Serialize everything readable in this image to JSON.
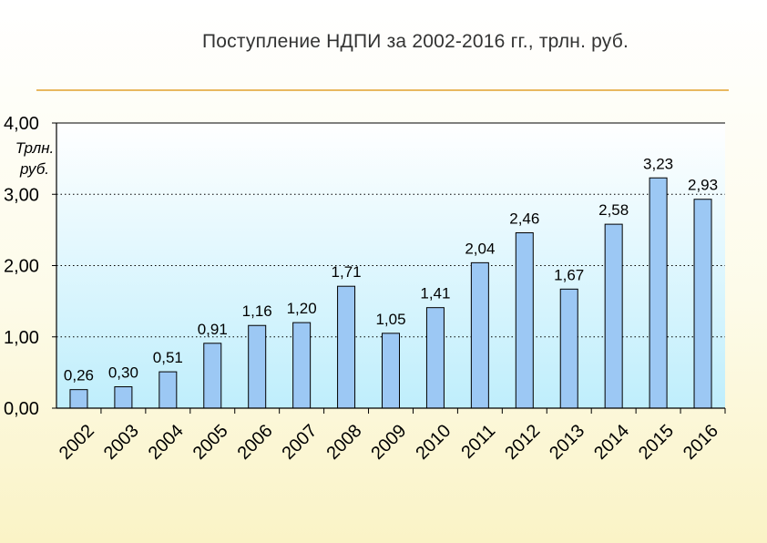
{
  "page": {
    "title": "Поступление НДПИ за 2002-2016 гг., трлн. руб.",
    "slide_number": ""
  },
  "colors": {
    "bar_fill": "#9cc8f4",
    "bar_stroke": "#000000",
    "plot_top": "#ffffff",
    "plot_bottom": "#bfeefc",
    "rule": "#e8b860"
  },
  "chart_data": {
    "type": "bar",
    "title": "Поступление НДПИ за 2002-2016 гг., трлн. руб.",
    "unit_label_lines": [
      "Трлн.",
      "руб."
    ],
    "categories": [
      "2002",
      "2003",
      "2004",
      "2005",
      "2006",
      "2007",
      "2008",
      "2009",
      "2010",
      "2011",
      "2012",
      "2013",
      "2014",
      "2015",
      "2016"
    ],
    "values": [
      0.26,
      0.3,
      0.51,
      0.91,
      1.16,
      1.2,
      1.71,
      1.05,
      1.41,
      2.04,
      2.46,
      1.67,
      2.58,
      3.23,
      2.93
    ],
    "value_labels": [
      "0,26",
      "0,30",
      "0,51",
      "0,91",
      "1,16",
      "1,20",
      "1,71",
      "1,05",
      "1,41",
      "2,04",
      "2,46",
      "1,67",
      "2,58",
      "3,23",
      "2,93"
    ],
    "ylim": [
      0,
      4
    ],
    "yticks": [
      0,
      1,
      2,
      3,
      4
    ],
    "ytick_labels": [
      "0,00",
      "1,00",
      "2,00",
      "3,00",
      "4,00"
    ],
    "grid": "horizontal-dotted",
    "legend": "none"
  }
}
